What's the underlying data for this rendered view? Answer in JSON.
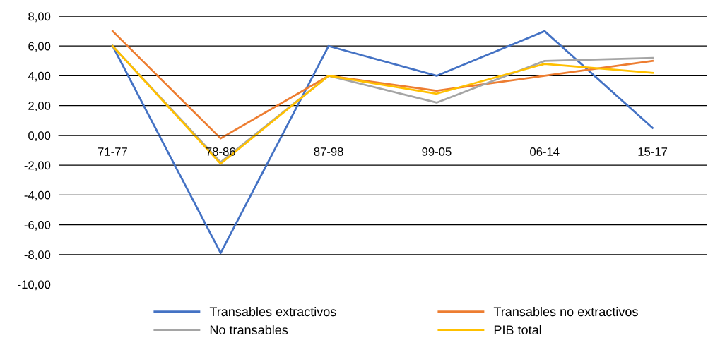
{
  "chart_data": {
    "type": "line",
    "categories": [
      "71-77",
      "78-86",
      "87-98",
      "99-05",
      "06-14",
      "15-17"
    ],
    "series": [
      {
        "name": "Transables extractivos",
        "color": "#4472c4",
        "values": [
          6.0,
          -7.9,
          6.0,
          4.0,
          7.0,
          0.5
        ]
      },
      {
        "name": "Transables no extractivos",
        "color": "#ed7d31",
        "values": [
          7.0,
          -0.2,
          4.0,
          3.0,
          4.0,
          5.0
        ]
      },
      {
        "name": "No transables",
        "color": "#a5a5a5",
        "values": [
          6.0,
          -1.8,
          4.0,
          2.2,
          5.0,
          5.2
        ]
      },
      {
        "name": "PIB total",
        "color": "#ffc000",
        "values": [
          6.0,
          -1.9,
          4.0,
          2.8,
          4.8,
          4.2
        ]
      }
    ],
    "ylim": [
      -10,
      8
    ],
    "yticks": [
      {
        "value": -10,
        "label": "-10,00"
      },
      {
        "value": -8,
        "label": "-8,00"
      },
      {
        "value": -6,
        "label": "-6,00"
      },
      {
        "value": -4,
        "label": "-4,00"
      },
      {
        "value": -2,
        "label": "-2,00"
      },
      {
        "value": 0,
        "label": "0,00"
      },
      {
        "value": 2,
        "label": "2,00"
      },
      {
        "value": 4,
        "label": "4,00"
      },
      {
        "value": 6,
        "label": "6,00"
      },
      {
        "value": 8,
        "label": "8,00"
      }
    ],
    "grid": "y",
    "legend": "bottom",
    "marker": "none",
    "line_style": "solid"
  }
}
